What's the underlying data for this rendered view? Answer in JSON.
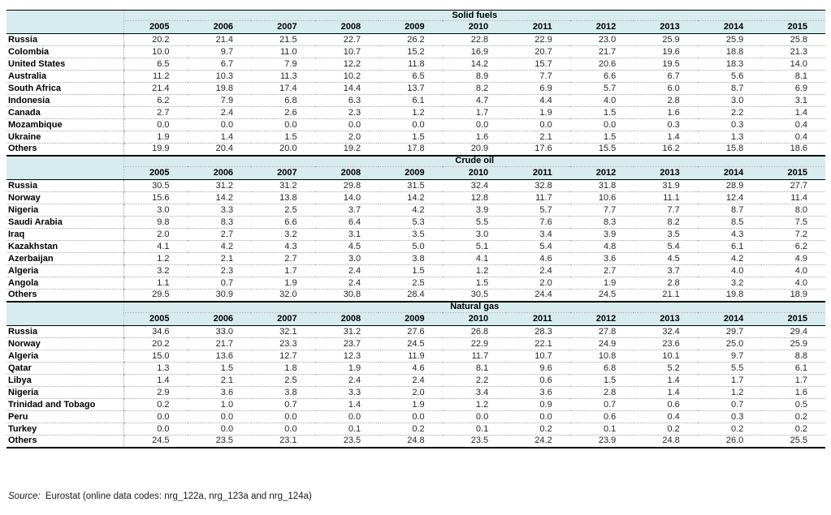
{
  "colors": {
    "header_fill": "#d6ecef",
    "dotted_line": "#9e9e9e",
    "solid_rule": "#000000",
    "text": "#1a1a1a"
  },
  "source": {
    "label": "Source:",
    "text": " Eurostat (online data codes: nrg_122a, nrg_123a and nrg_124a)"
  },
  "sections": [
    {
      "title": "Solid fuels",
      "years": [
        "2005",
        "2006",
        "2007",
        "2008",
        "2009",
        "2010",
        "2011",
        "2012",
        "2013",
        "2014",
        "2015"
      ],
      "rows": [
        {
          "name": "Russia",
          "values": [
            "20.2",
            "21.4",
            "21.5",
            "22.7",
            "26.2",
            "22.8",
            "22.9",
            "23.0",
            "25.9",
            "25.9",
            "25.8"
          ]
        },
        {
          "name": "Colombia",
          "values": [
            "10.0",
            "9.7",
            "11.0",
            "10.7",
            "15.2",
            "16.9",
            "20.7",
            "21.7",
            "19.6",
            "18.8",
            "21.3"
          ]
        },
        {
          "name": "United States",
          "values": [
            "6.5",
            "6.7",
            "7.9",
            "12.2",
            "11.8",
            "14.2",
            "15.7",
            "20.6",
            "19.5",
            "18.3",
            "14.0"
          ]
        },
        {
          "name": "Australia",
          "values": [
            "11.2",
            "10.3",
            "11.3",
            "10.2",
            "6.5",
            "8.9",
            "7.7",
            "6.6",
            "6.7",
            "5.6",
            "8.1"
          ]
        },
        {
          "name": "South Africa",
          "values": [
            "21.4",
            "19.8",
            "17.4",
            "14.4",
            "13.7",
            "8.2",
            "6.9",
            "5.7",
            "6.0",
            "8.7",
            "6.9"
          ]
        },
        {
          "name": "Indonesia",
          "values": [
            "6.2",
            "7.9",
            "6.8",
            "6.3",
            "6.1",
            "4.7",
            "4.4",
            "4.0",
            "2.8",
            "3.0",
            "3.1"
          ]
        },
        {
          "name": "Canada",
          "values": [
            "2.7",
            "2.4",
            "2.6",
            "2.3",
            "1.2",
            "1.7",
            "1.9",
            "1.5",
            "1.6",
            "2.2",
            "1.4"
          ]
        },
        {
          "name": "Mozambique",
          "values": [
            "0.0",
            "0.0",
            "0.0",
            "0.0",
            "0.0",
            "0.0",
            "0.0",
            "0.0",
            "0.3",
            "0.3",
            "0.4"
          ]
        },
        {
          "name": "Ukraine",
          "values": [
            "1.9",
            "1.4",
            "1.5",
            "2.0",
            "1.5",
            "1.6",
            "2.1",
            "1.5",
            "1.4",
            "1.3",
            "0.4"
          ]
        },
        {
          "name": "Others",
          "values": [
            "19.9",
            "20.4",
            "20.0",
            "19.2",
            "17.8",
            "20.9",
            "17.6",
            "15.5",
            "16.2",
            "15.8",
            "18.6"
          ]
        }
      ]
    },
    {
      "title": "Crude oil",
      "years": [
        "2005",
        "2006",
        "2007",
        "2008",
        "2009",
        "2010",
        "2011",
        "2012",
        "2013",
        "2014",
        "2015"
      ],
      "rows": [
        {
          "name": "Russia",
          "values": [
            "30.5",
            "31.2",
            "31.2",
            "29.8",
            "31.5",
            "32.4",
            "32.8",
            "31.8",
            "31.9",
            "28.9",
            "27.7"
          ]
        },
        {
          "name": "Norway",
          "values": [
            "15.6",
            "14.2",
            "13.8",
            "14.0",
            "14.2",
            "12.8",
            "11.7",
            "10.6",
            "11.1",
            "12.4",
            "11.4"
          ]
        },
        {
          "name": "Nigeria",
          "values": [
            "3.0",
            "3.3",
            "2.5",
            "3.7",
            "4.2",
            "3.9",
            "5.7",
            "7.7",
            "7.7",
            "8.7",
            "8.0"
          ]
        },
        {
          "name": "Saudi Arabia",
          "values": [
            "9.8",
            "8.3",
            "6.6",
            "6.4",
            "5.3",
            "5.5",
            "7.6",
            "8.3",
            "8.2",
            "8.5",
            "7.5"
          ]
        },
        {
          "name": "Iraq",
          "values": [
            "2.0",
            "2.7",
            "3.2",
            "3.1",
            "3.5",
            "3.0",
            "3.4",
            "3.9",
            "3.5",
            "4.3",
            "7.2"
          ]
        },
        {
          "name": "Kazakhstan",
          "values": [
            "4.1",
            "4.2",
            "4.3",
            "4.5",
            "5.0",
            "5.1",
            "5.4",
            "4.8",
            "5.4",
            "6.1",
            "6.2"
          ]
        },
        {
          "name": "Azerbaijan",
          "values": [
            "1.2",
            "2.1",
            "2.7",
            "3.0",
            "3.8",
            "4.1",
            "4.6",
            "3.6",
            "4.5",
            "4.2",
            "4.9"
          ]
        },
        {
          "name": "Algeria",
          "values": [
            "3.2",
            "2.3",
            "1.7",
            "2.4",
            "1.5",
            "1.2",
            "2.4",
            "2.7",
            "3.7",
            "4.0",
            "4.0"
          ]
        },
        {
          "name": "Angola",
          "values": [
            "1.1",
            "0.7",
            "1.9",
            "2.4",
            "2.5",
            "1.5",
            "2.0",
            "1.9",
            "2.8",
            "3.2",
            "4.0"
          ]
        },
        {
          "name": "Others",
          "values": [
            "29.5",
            "30.9",
            "32.0",
            "30.8",
            "28.4",
            "30.5",
            "24.4",
            "24.5",
            "21.1",
            "19.8",
            "18.9"
          ]
        }
      ]
    },
    {
      "title": "Natural gas",
      "years": [
        "2005",
        "2006",
        "2007",
        "2008",
        "2009",
        "2010",
        "2011",
        "2012",
        "2013",
        "2014",
        "2015"
      ],
      "rows": [
        {
          "name": "Russia",
          "values": [
            "34.6",
            "33.0",
            "32.1",
            "31.2",
            "27.6",
            "26.8",
            "28.3",
            "27.8",
            "32.4",
            "29.7",
            "29.4"
          ]
        },
        {
          "name": "Norway",
          "values": [
            "20.2",
            "21.7",
            "23.3",
            "23.7",
            "24.5",
            "22.9",
            "22.1",
            "24.9",
            "23.6",
            "25.0",
            "25.9"
          ]
        },
        {
          "name": "Algeria",
          "values": [
            "15.0",
            "13.6",
            "12.7",
            "12.3",
            "11.9",
            "11.7",
            "10.7",
            "10.8",
            "10.1",
            "9.7",
            "8.8"
          ]
        },
        {
          "name": "Qatar",
          "values": [
            "1.3",
            "1.5",
            "1.8",
            "1.9",
            "4.6",
            "8.1",
            "9.6",
            "6.8",
            "5.2",
            "5.5",
            "6.1"
          ]
        },
        {
          "name": "Libya",
          "values": [
            "1.4",
            "2.1",
            "2.5",
            "2.4",
            "2.4",
            "2.2",
            "0.6",
            "1.5",
            "1.4",
            "1.7",
            "1.7"
          ]
        },
        {
          "name": "Nigeria",
          "values": [
            "2.9",
            "3.6",
            "3.8",
            "3.3",
            "2.0",
            "3.4",
            "3.6",
            "2.8",
            "1.4",
            "1.2",
            "1.6"
          ]
        },
        {
          "name": "Trinidad and Tobago",
          "values": [
            "0.2",
            "1.0",
            "0.7",
            "1.4",
            "1.9",
            "1.2",
            "0.9",
            "0.7",
            "0.6",
            "0.7",
            "0.5"
          ]
        },
        {
          "name": "Peru",
          "values": [
            "0.0",
            "0.0",
            "0.0",
            "0.0",
            "0.0",
            "0.0",
            "0.0",
            "0.6",
            "0.4",
            "0.3",
            "0.2"
          ]
        },
        {
          "name": "Turkey",
          "values": [
            "0.0",
            "0.0",
            "0.0",
            "0.1",
            "0.2",
            "0.1",
            "0.2",
            "0.1",
            "0.2",
            "0.2",
            "0.2"
          ]
        },
        {
          "name": "Others",
          "values": [
            "24.5",
            "23.5",
            "23.1",
            "23.5",
            "24.8",
            "23.5",
            "24.2",
            "23.9",
            "24.8",
            "26.0",
            "25.5"
          ]
        }
      ]
    }
  ]
}
